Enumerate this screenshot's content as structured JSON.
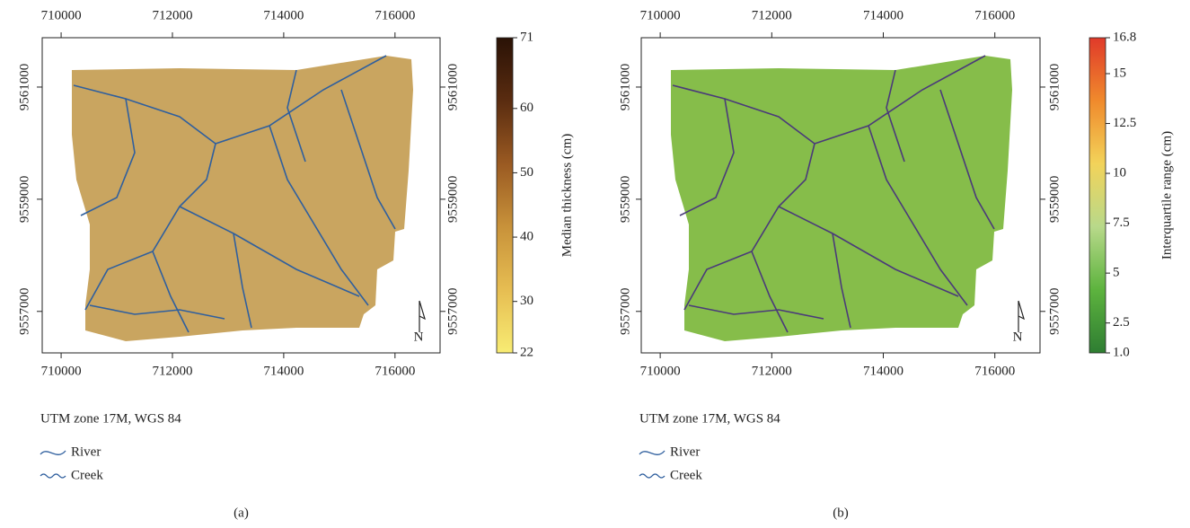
{
  "chart_data": [
    {
      "type": "map",
      "panel_label": "(a)",
      "crs": "UTM zone 17M, WGS 84",
      "north": "N",
      "xlim": [
        709660,
        716810
      ],
      "xticks": [
        710000,
        712000,
        714000,
        716000
      ],
      "ylim": [
        9556260,
        9561880
      ],
      "yticks": [
        9557000,
        9559000,
        9561000
      ],
      "fill": "#c9a560",
      "stream_color": "#2f5f9e",
      "colorbar": {
        "label": "Median thickness (cm)",
        "lim": [
          22,
          71
        ],
        "ticks": [
          22,
          30,
          40,
          50,
          60,
          71
        ],
        "colors": [
          "#f8ec73",
          "#e6bd52",
          "#c8923a",
          "#9a5a22",
          "#5a2c10",
          "#2a1206"
        ]
      },
      "legend": [
        {
          "name": "River",
          "color": "#2f5f9e"
        },
        {
          "name": "Creek",
          "color": "#2f5f9e"
        }
      ]
    },
    {
      "type": "map",
      "panel_label": "(b)",
      "crs": "UTM zone 17M, WGS 84",
      "north": "N",
      "xlim": [
        709660,
        716810
      ],
      "xticks": [
        710000,
        712000,
        714000,
        716000
      ],
      "ylim": [
        9556260,
        9561880
      ],
      "yticks": [
        9557000,
        9559000,
        9561000
      ],
      "fill": "#86bd4a",
      "stream_color": "#4a3a7a",
      "colorbar": {
        "label": "Interquartile range (cm)",
        "lim": [
          1.0,
          16.8
        ],
        "ticks": [
          {
            "value": 1.0,
            "label": "1.0"
          },
          2.5,
          5,
          7.5,
          10,
          12.5,
          15,
          16.8
        ],
        "colors": [
          "#2e7d32",
          "#5db33e",
          "#b8d98a",
          "#f2d35a",
          "#f08a2c",
          "#e03a2a"
        ]
      },
      "legend": [
        {
          "name": "River",
          "color": "#2f5f9e"
        },
        {
          "name": "Creek",
          "color": "#2f5f9e"
        }
      ]
    }
  ]
}
